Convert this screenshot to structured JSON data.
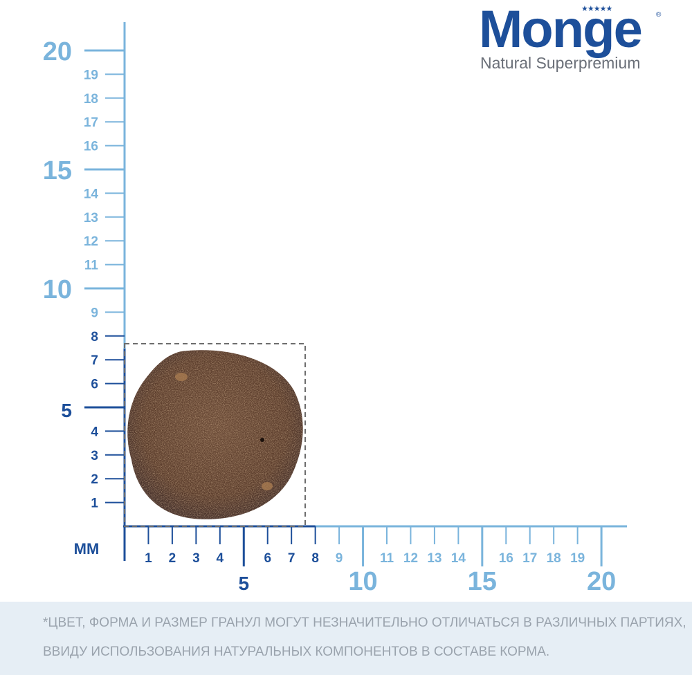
{
  "brand": {
    "name": "Monge",
    "tagline": "Natural Superpremium",
    "stars": "★★★★★",
    "registered_mark": "®"
  },
  "ruler": {
    "unit_label": "мм",
    "x_minor_ticks": [
      "1",
      "2",
      "3",
      "4",
      "6",
      "7",
      "8",
      "9",
      "11",
      "12",
      "13",
      "14",
      "16",
      "17",
      "18",
      "19"
    ],
    "y_minor_ticks": [
      "1",
      "2",
      "3",
      "4",
      "6",
      "7",
      "8",
      "9",
      "11",
      "12",
      "13",
      "14",
      "16",
      "17",
      "18",
      "19"
    ],
    "x_major_ticks": [
      "5",
      "10",
      "15",
      "20"
    ],
    "y_major_ticks": [
      "5",
      "10",
      "15",
      "20"
    ],
    "highlight_limit_mm": 8,
    "colors": {
      "dark": "#1d4f9a",
      "light": "#7ab4dc"
    }
  },
  "kibble": {
    "width_mm": 7.5,
    "height_mm": 7.2,
    "color": "#5e3f2e"
  },
  "footer": {
    "line1": "*ЦВЕТ, ФОРМА И РАЗМЕР ГРАНУЛ МОГУТ НЕЗНАЧИТЕЛЬНО ОТЛИЧАТЬСЯ В РАЗЛИЧНЫХ ПАРТИЯХ,",
    "line2": "ВВИДУ ИСПОЛЬЗОВАНИЯ НАТУРАЛЬНЫХ КОМПОНЕНТОВ В СОСТАВЕ КОРМА."
  }
}
